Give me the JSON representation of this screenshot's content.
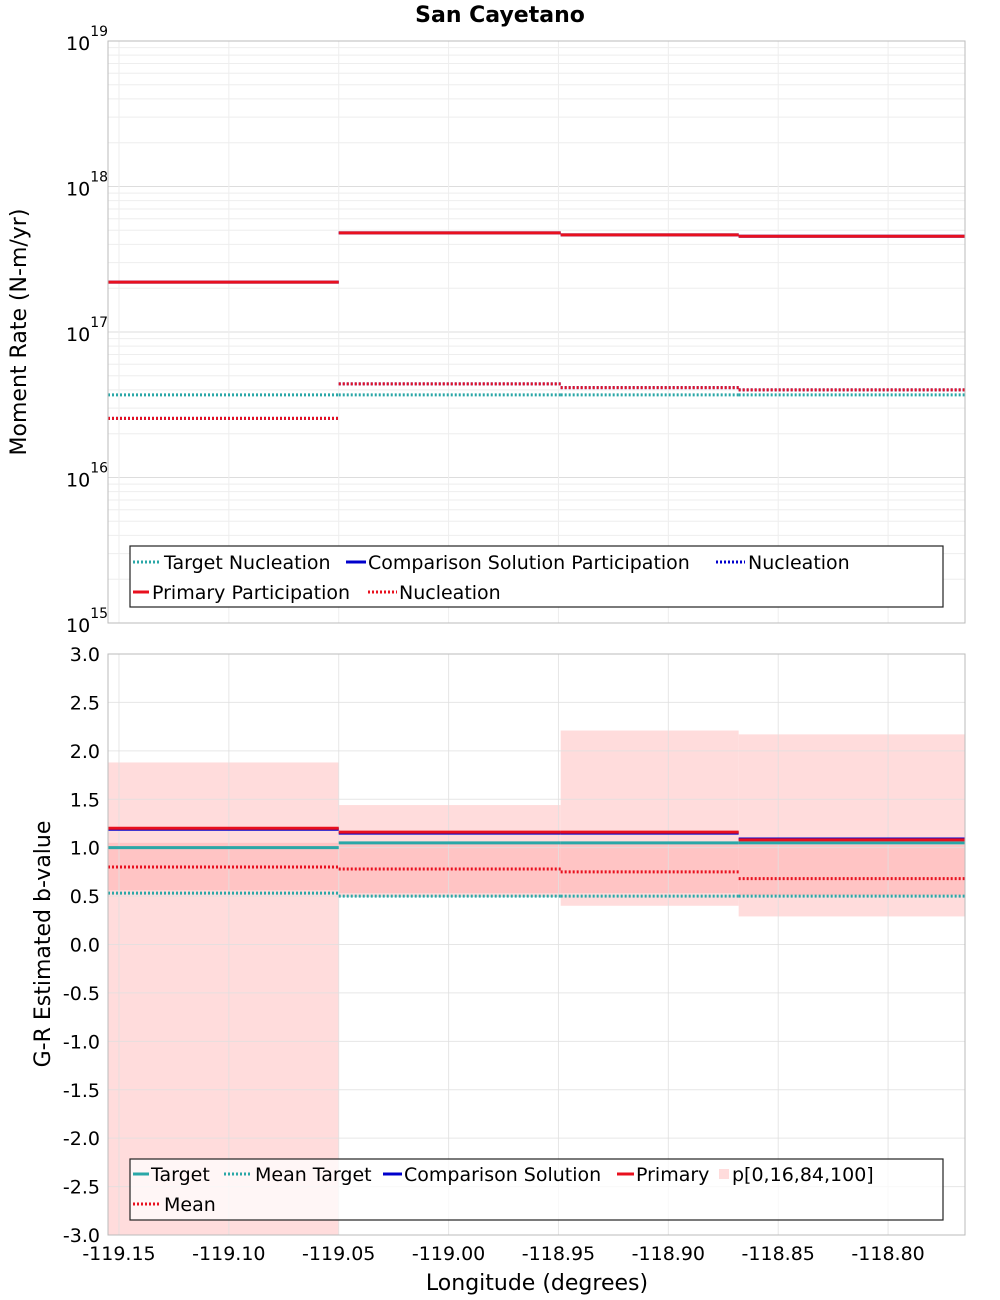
{
  "colors": {
    "target": "#2aa7a7",
    "comparison": "#0000cc",
    "primary": "#e8101e",
    "band": "#ffdcdc",
    "band_inner": "#ffc4c4",
    "grid": "#e6e6e6",
    "frame": "#bbbbbb"
  },
  "chart_data": [
    {
      "type": "line",
      "title": "San Cayetano",
      "xlabel": "",
      "ylabel": "Moment Rate (N-m/yr)",
      "yscale": "log",
      "ylim": [
        1000000000000000.0,
        1e+19
      ],
      "xlim": [
        -119.155,
        -118.765
      ],
      "y_ticks": [
        {
          "base": "10",
          "exp": "15",
          "value": 1000000000000000.0
        },
        {
          "base": "10",
          "exp": "16",
          "value": 1e+16
        },
        {
          "base": "10",
          "exp": "17",
          "value": 1e+17
        },
        {
          "base": "10",
          "exp": "18",
          "value": 1e+18
        },
        {
          "base": "10",
          "exp": "19",
          "value": 1e+19
        }
      ],
      "x_edges": [
        -119.155,
        -119.05,
        -118.949,
        -118.868,
        -118.765
      ],
      "series": [
        {
          "name": "Target Nucleation",
          "style": "dotted",
          "color_key": "target",
          "values": [
            3.7e+16,
            3.7e+16,
            3.7e+16,
            3.7e+16
          ]
        },
        {
          "name": "Comparison Solution Participation",
          "style": "solid",
          "color_key": "comparison",
          "values": [
            2.2e+17,
            4.8e+17,
            4.65e+17,
            4.55e+17
          ]
        },
        {
          "name": "Comparison Solution Nucleation",
          "style": "dotted",
          "color_key": "comparison",
          "values": [
            2.55e+16,
            4.4e+16,
            4.15e+16,
            4e+16
          ]
        },
        {
          "name": "Primary Participation",
          "style": "solid",
          "color_key": "primary",
          "values": [
            2.2e+17,
            4.8e+17,
            4.65e+17,
            4.55e+17
          ]
        },
        {
          "name": "Primary Nucleation",
          "style": "dotted",
          "color_key": "primary",
          "values": [
            2.55e+16,
            4.4e+16,
            4.15e+16,
            4e+16
          ]
        }
      ],
      "legend": {
        "position": "bottom",
        "items": [
          "Target Nucleation",
          "Comparison Solution Participation",
          "Nucleation",
          "Primary Participation",
          "Nucleation"
        ]
      }
    },
    {
      "type": "line",
      "title": "",
      "xlabel": "Longitude (degrees)",
      "ylabel": "G-R Estimated b-value",
      "ylim": [
        -3.0,
        3.0
      ],
      "xlim": [
        -119.155,
        -118.765
      ],
      "y_ticks": [
        "-3.0",
        "-2.5",
        "-2.0",
        "-1.5",
        "-1.0",
        "-0.5",
        "0.0",
        "0.5",
        "1.0",
        "1.5",
        "2.0",
        "2.5",
        "3.0"
      ],
      "x_ticks": [
        "-119.15",
        "-119.10",
        "-119.05",
        "-119.00",
        "-118.95",
        "-118.90",
        "-118.85",
        "-118.80"
      ],
      "x_edges": [
        -119.155,
        -119.05,
        -118.949,
        -118.868,
        -118.765
      ],
      "band_outer": {
        "low": [
          -3.0,
          0.49,
          0.4,
          0.29
        ],
        "high": [
          1.88,
          1.44,
          2.21,
          2.17
        ]
      },
      "band_inner": {
        "low": [
          0.56,
          0.53,
          0.53,
          0.51
        ],
        "high": [
          1.05,
          1.05,
          1.05,
          1.03
        ]
      },
      "series": [
        {
          "name": "Target",
          "style": "solid",
          "color_key": "target",
          "values": [
            1.0,
            1.05,
            1.05,
            1.05
          ]
        },
        {
          "name": "Mean Target",
          "style": "dotted",
          "color_key": "target",
          "values": [
            0.53,
            0.5,
            0.5,
            0.5
          ]
        },
        {
          "name": "Comparison Solution",
          "style": "solid",
          "color_key": "comparison",
          "values": [
            1.19,
            1.15,
            1.15,
            1.09
          ]
        },
        {
          "name": "Primary",
          "style": "solid",
          "color_key": "primary",
          "values": [
            1.2,
            1.16,
            1.16,
            1.08
          ]
        },
        {
          "name": "Mean",
          "style": "dotted",
          "color_key": "primary",
          "values": [
            0.8,
            0.78,
            0.75,
            0.68
          ]
        }
      ],
      "legend": {
        "position": "bottom",
        "items": [
          "Target",
          "Mean Target",
          "Comparison Solution",
          "Primary",
          "p[0,16,84,100]",
          "Mean"
        ]
      }
    }
  ]
}
